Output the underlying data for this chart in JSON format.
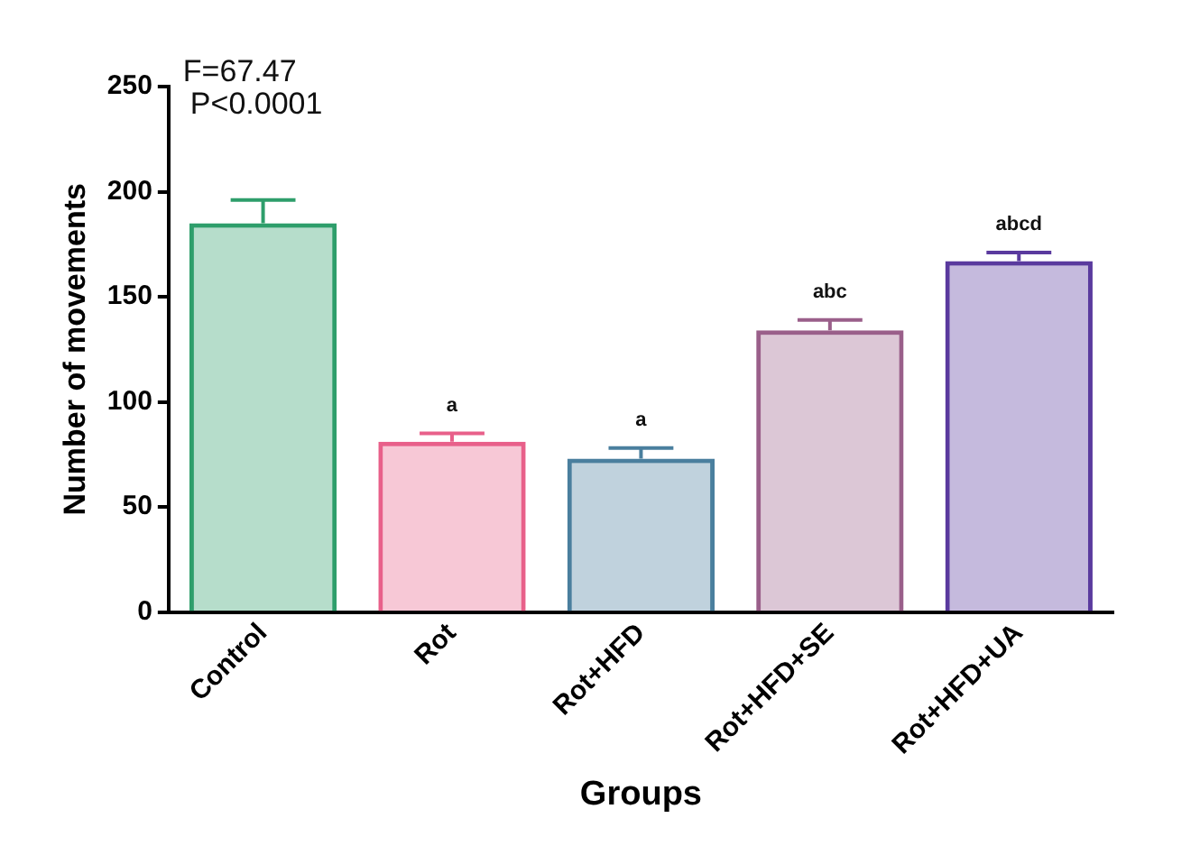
{
  "chart_data": {
    "type": "bar",
    "xlabel": "Groups",
    "ylabel": "Number of movements",
    "categories": [
      "Control",
      "Rot",
      "Rot+HFD",
      "Rot+HFD+SE",
      "Rot+HFD+UA"
    ],
    "values": [
      185,
      81,
      73,
      134,
      167
    ],
    "colors": [
      "#2e9e6b",
      "#e8608a",
      "#4a7f9e",
      "#9a5f8a",
      "#5a3a9e"
    ],
    "errors": [
      [
        185,
        196
      ],
      [
        81,
        85
      ],
      [
        73,
        78
      ],
      [
        134,
        139
      ],
      [
        167,
        171
      ]
    ],
    "ylim": [
      0,
      250
    ],
    "yticks": [
      0,
      50,
      100,
      150,
      200,
      250
    ],
    "grid": false,
    "legend": false,
    "annotations": [
      "F=67.47",
      "P<0.0001",
      {
        "text": "a",
        "x": "Rot",
        "y": 85
      },
      {
        "text": "a",
        "x": "Rot+HFD",
        "y": 78
      },
      {
        "text": "abc",
        "x": "Rot+HFD+SE",
        "y": 139
      },
      {
        "text": "abcd",
        "x": "Rot+HFD+UA",
        "y": 171
      }
    ]
  }
}
